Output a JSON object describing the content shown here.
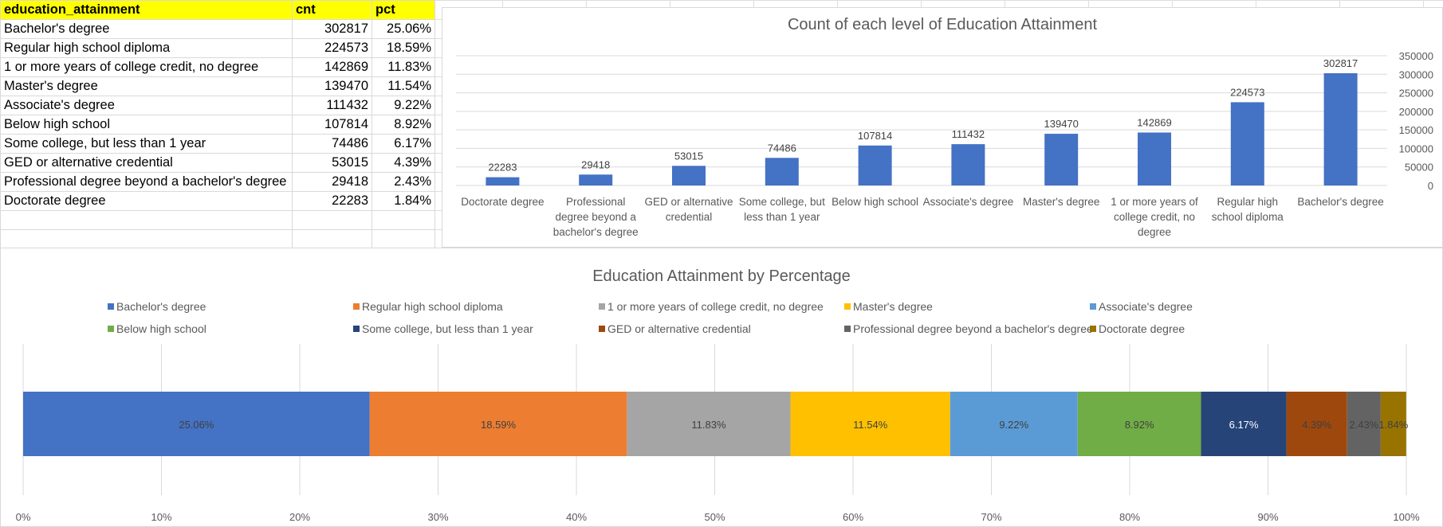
{
  "table": {
    "headers": [
      "education_attainment",
      "cnt",
      "pct"
    ],
    "rows": [
      {
        "label": "Bachelor's degree",
        "cnt": "302817",
        "pct": "25.06%"
      },
      {
        "label": "Regular high school diploma",
        "cnt": "224573",
        "pct": "18.59%"
      },
      {
        "label": "1 or more years of college credit, no degree",
        "cnt": "142869",
        "pct": "11.83%"
      },
      {
        "label": "Master's degree",
        "cnt": "139470",
        "pct": "11.54%"
      },
      {
        "label": "Associate's degree",
        "cnt": "111432",
        "pct": "9.22%"
      },
      {
        "label": "Below high school",
        "cnt": "107814",
        "pct": "8.92%"
      },
      {
        "label": "Some college, but less than 1 year",
        "cnt": "74486",
        "pct": "6.17%"
      },
      {
        "label": "GED or alternative credential",
        "cnt": "53015",
        "pct": "4.39%"
      },
      {
        "label": "Professional degree beyond a bachelor's degree",
        "cnt": "29418",
        "pct": "2.43%"
      },
      {
        "label": "Doctorate degree",
        "cnt": "22283",
        "pct": "1.84%"
      }
    ]
  },
  "chart_data": [
    {
      "type": "bar",
      "title": "Count of each level of Education Attainment",
      "xlabel": "",
      "ylabel": "",
      "ylim": [
        0,
        350000
      ],
      "yticks": [
        "0",
        "50000",
        "100000",
        "150000",
        "200000",
        "250000",
        "300000",
        "350000"
      ],
      "y_axis_side": "right",
      "grid": true,
      "data_labels": true,
      "color": "#4472C4",
      "categories": [
        [
          "Doctorate degree"
        ],
        [
          "Professional",
          "degree beyond a",
          "bachelor's degree"
        ],
        [
          "GED or alternative",
          "credential"
        ],
        [
          "Some college, but",
          "less than 1 year"
        ],
        [
          "Below high school"
        ],
        [
          "Associate's degree"
        ],
        [
          "Master's degree"
        ],
        [
          "1 or more years of",
          "college credit, no",
          "degree"
        ],
        [
          "Regular high",
          "school diploma"
        ],
        [
          "Bachelor's degree"
        ]
      ],
      "values": [
        22283,
        29418,
        53015,
        74486,
        107814,
        111432,
        139470,
        142869,
        224573,
        302817
      ]
    },
    {
      "type": "bar",
      "orientation": "horizontal-stacked-100",
      "title": "Education Attainment by Percentage",
      "xlim": [
        0,
        100
      ],
      "xticks": [
        "0%",
        "10%",
        "20%",
        "30%",
        "40%",
        "50%",
        "60%",
        "70%",
        "80%",
        "90%",
        "100%"
      ],
      "grid": true,
      "legend": "top",
      "data_labels": true,
      "series": [
        {
          "name": "Bachelor's degree",
          "value": 25.06,
          "label": "25.06%",
          "color": "#4472C4",
          "label_color": "#404040"
        },
        {
          "name": "Regular high school diploma",
          "value": 18.59,
          "label": "18.59%",
          "color": "#ED7D31",
          "label_color": "#404040"
        },
        {
          "name": "1 or more years of college credit, no degree",
          "value": 11.83,
          "label": "11.83%",
          "color": "#A5A5A5",
          "label_color": "#404040"
        },
        {
          "name": "Master's degree",
          "value": 11.54,
          "label": "11.54%",
          "color": "#FFC000",
          "label_color": "#404040"
        },
        {
          "name": "Associate's degree",
          "value": 9.22,
          "label": "9.22%",
          "color": "#5B9BD5",
          "label_color": "#404040"
        },
        {
          "name": "Below high school",
          "value": 8.92,
          "label": "8.92%",
          "color": "#70AD47",
          "label_color": "#404040"
        },
        {
          "name": "Some college, but less than 1 year",
          "value": 6.17,
          "label": "6.17%",
          "color": "#264478",
          "label_color": "#ffffff"
        },
        {
          "name": "GED or alternative credential",
          "value": 4.39,
          "label": "4.39%",
          "color": "#9E480E",
          "label_color": "#404040"
        },
        {
          "name": "Professional degree beyond a bachelor's degree",
          "value": 2.43,
          "label": "2.43%",
          "color": "#636363",
          "label_color": "#404040"
        },
        {
          "name": "Doctorate degree",
          "value": 1.84,
          "label": "1.84%",
          "color": "#997300",
          "label_color": "#404040"
        }
      ]
    }
  ]
}
